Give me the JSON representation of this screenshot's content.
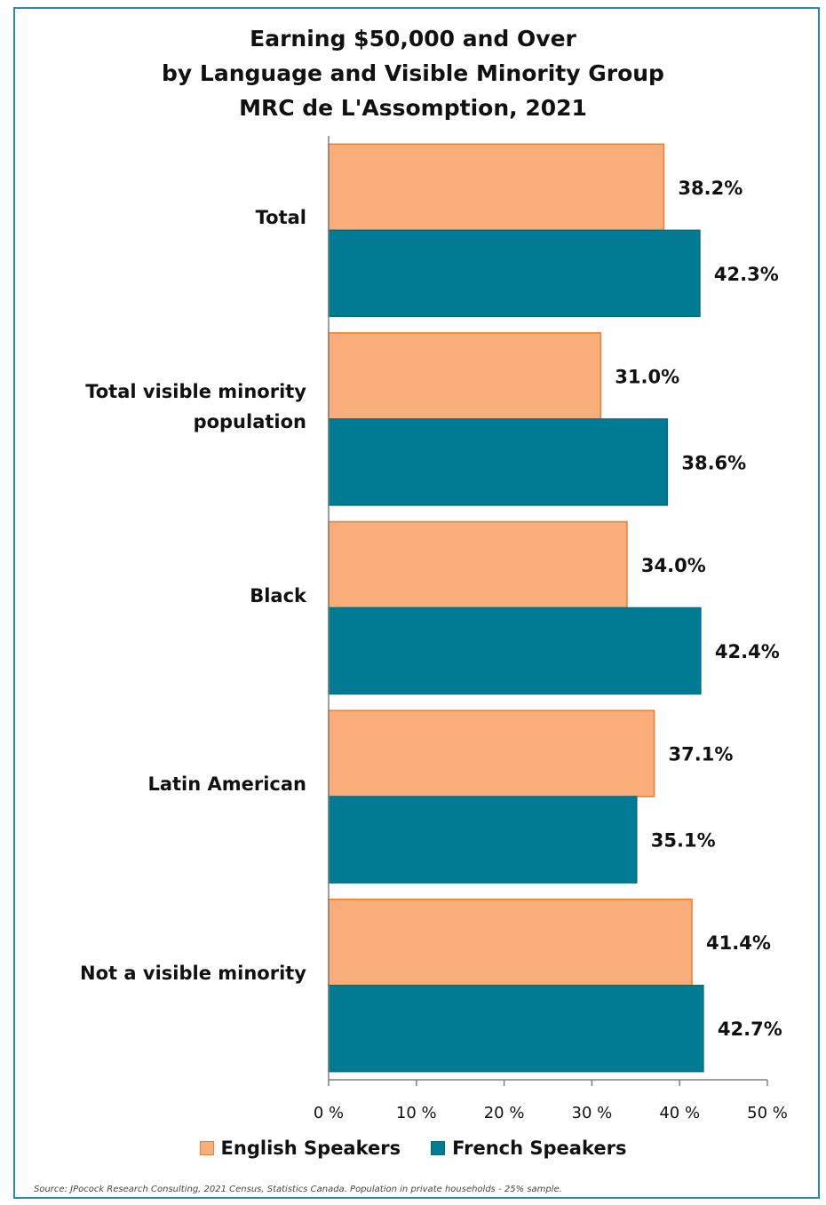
{
  "chart_data": {
    "type": "bar",
    "orientation": "horizontal",
    "title": "Earning $50,000 and Over\nby Language and Visible Minority Group\nMRC de L'Assomption, 2021",
    "categories": [
      "Total",
      "Total visible minority\npopulation",
      "Black",
      "Latin American",
      "Not a visible minority"
    ],
    "series": [
      {
        "name": "English Speakers",
        "color": "#f9ad78",
        "values": [
          38.2,
          31.0,
          34.0,
          37.1,
          41.4
        ]
      },
      {
        "name": "French Speakers",
        "color": "#007b93",
        "values": [
          42.3,
          38.6,
          42.4,
          35.1,
          42.7
        ]
      }
    ],
    "data_labels": [
      [
        "38.2%",
        "31.0%",
        "34.0%",
        "37.1%",
        "41.4%"
      ],
      [
        "42.3%",
        "38.6%",
        "42.4%",
        "35.1%",
        "42.7%"
      ]
    ],
    "xlim": [
      0,
      50
    ],
    "xticks": [
      0,
      10,
      20,
      30,
      40,
      50
    ],
    "xtick_labels": [
      "0 %",
      "10 %",
      "20 %",
      "30 %",
      "40 %",
      "50 %"
    ],
    "grid": false,
    "legend_position": "bottom"
  },
  "title_lines": [
    "Earning $50,000 and Over",
    "by Language and Visible Minority Group",
    "MRC de L'Assomption, 2021"
  ],
  "source": "Source: JPocock Research Consulting, 2021 Census, Statistics Canada. Population in private households - 25% sample."
}
